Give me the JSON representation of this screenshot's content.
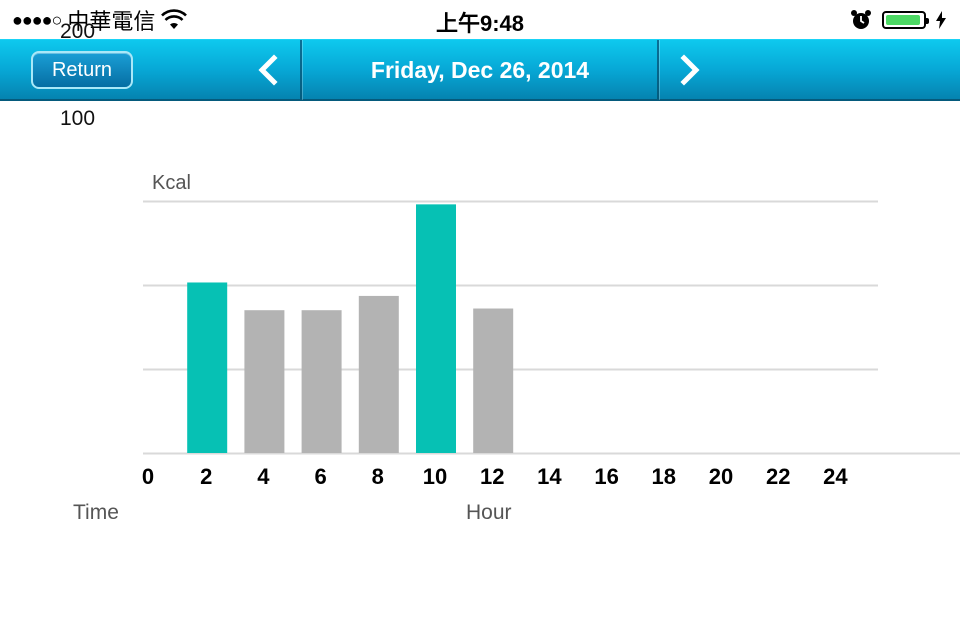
{
  "status_bar": {
    "carrier": "中華電信",
    "signal": "●●●●○",
    "time": "上午9:48"
  },
  "nav": {
    "return_label": "Return",
    "title": "Friday, Dec 26, 2014",
    "prev_icon": "chevron-left-icon",
    "next_icon": "chevron-right-icon"
  },
  "stray_labels": {
    "top": "200",
    "second": "100"
  },
  "chart_data": {
    "type": "bar",
    "ylabel": "Kcal",
    "xlabel": "Hour",
    "x_caption": "Time",
    "ylim": [
      0,
      300
    ],
    "grid": true,
    "x_ticks": [
      "0",
      "2",
      "4",
      "6",
      "8",
      "10",
      "12",
      "14",
      "16",
      "18",
      "20",
      "22",
      "24"
    ],
    "bars": [
      {
        "hour": 2,
        "value": 203,
        "highlight": true
      },
      {
        "hour": 4,
        "value": 170,
        "highlight": false
      },
      {
        "hour": 6,
        "value": 170,
        "highlight": false
      },
      {
        "hour": 8,
        "value": 187,
        "highlight": false
      },
      {
        "hour": 10,
        "value": 296,
        "highlight": true
      },
      {
        "hour": 12,
        "value": 172,
        "highlight": false
      }
    ],
    "colors": {
      "highlight": "#06c1b4",
      "normal": "#b3b3b3",
      "grid": "#d9d9d9"
    }
  }
}
